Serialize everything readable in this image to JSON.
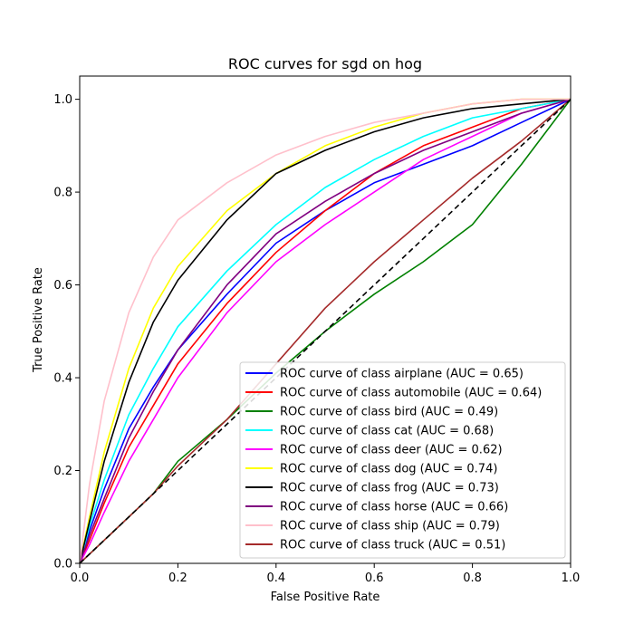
{
  "chart_data": {
    "type": "line",
    "title": "ROC curves for sgd on hog",
    "xlabel": "False Positive Rate",
    "ylabel": "True Positive Rate",
    "xlim": [
      0.0,
      1.0
    ],
    "ylim": [
      0.0,
      1.05
    ],
    "x_ticks": [
      "0.0",
      "0.2",
      "0.4",
      "0.6",
      "0.8",
      "1.0"
    ],
    "y_ticks": [
      "0.0",
      "0.2",
      "0.4",
      "0.6",
      "0.8",
      "1.0"
    ],
    "grid": false,
    "legend_position": "lower-right",
    "x": [
      0,
      0.02,
      0.05,
      0.1,
      0.15,
      0.2,
      0.3,
      0.4,
      0.5,
      0.6,
      0.7,
      0.8,
      0.9,
      1.0
    ],
    "series": [
      {
        "name": "ROC curve of class airplane (AUC = 0.65)",
        "color": "#0000ff",
        "values": [
          0,
          0.07,
          0.16,
          0.29,
          0.38,
          0.46,
          0.58,
          0.69,
          0.76,
          0.82,
          0.86,
          0.9,
          0.95,
          1.0
        ]
      },
      {
        "name": "ROC curve of class automobile (AUC = 0.64)",
        "color": "#ff0000",
        "values": [
          0,
          0.05,
          0.13,
          0.25,
          0.34,
          0.43,
          0.56,
          0.67,
          0.76,
          0.84,
          0.9,
          0.94,
          0.98,
          1.0
        ]
      },
      {
        "name": "ROC curve of class bird (AUC = 0.49)",
        "color": "#008000",
        "values": [
          0,
          0.02,
          0.05,
          0.1,
          0.15,
          0.22,
          0.31,
          0.41,
          0.5,
          0.58,
          0.65,
          0.73,
          0.86,
          1.0
        ]
      },
      {
        "name": "ROC curve of class cat (AUC = 0.68)",
        "color": "#00ffff",
        "values": [
          0,
          0.08,
          0.18,
          0.32,
          0.42,
          0.51,
          0.63,
          0.73,
          0.81,
          0.87,
          0.92,
          0.96,
          0.98,
          1.0
        ]
      },
      {
        "name": "ROC curve of class deer (AUC = 0.62)",
        "color": "#ff00ff",
        "values": [
          0,
          0.04,
          0.11,
          0.22,
          0.31,
          0.4,
          0.54,
          0.65,
          0.73,
          0.8,
          0.87,
          0.92,
          0.97,
          1.0
        ]
      },
      {
        "name": "ROC curve of class dog (AUC = 0.74)",
        "color": "#ffff00",
        "values": [
          0,
          0.1,
          0.24,
          0.42,
          0.55,
          0.64,
          0.76,
          0.84,
          0.9,
          0.94,
          0.97,
          0.99,
          1.0,
          1.0
        ]
      },
      {
        "name": "ROC curve of class frog (AUC = 0.73)",
        "color": "#000000",
        "values": [
          0,
          0.09,
          0.22,
          0.39,
          0.52,
          0.61,
          0.74,
          0.84,
          0.89,
          0.93,
          0.96,
          0.98,
          0.99,
          1.0
        ]
      },
      {
        "name": "ROC curve of class horse (AUC = 0.66)",
        "color": "#800080",
        "values": [
          0,
          0.06,
          0.14,
          0.27,
          0.37,
          0.46,
          0.6,
          0.71,
          0.78,
          0.84,
          0.89,
          0.93,
          0.97,
          1.0
        ]
      },
      {
        "name": "ROC curve of class ship (AUC = 0.79)",
        "color": "#ffc0cb",
        "values": [
          0,
          0.17,
          0.35,
          0.54,
          0.66,
          0.74,
          0.82,
          0.88,
          0.92,
          0.95,
          0.97,
          0.99,
          1.0,
          1.0
        ]
      },
      {
        "name": "ROC curve of class truck (AUC = 0.51)",
        "color": "#a52a2a",
        "values": [
          0,
          0.02,
          0.05,
          0.1,
          0.15,
          0.21,
          0.31,
          0.43,
          0.55,
          0.65,
          0.74,
          0.83,
          0.91,
          1.0
        ]
      }
    ],
    "reference_line": {
      "style": "dashed",
      "color": "#000000",
      "x": [
        0,
        1
      ],
      "y": [
        0,
        1
      ]
    }
  }
}
